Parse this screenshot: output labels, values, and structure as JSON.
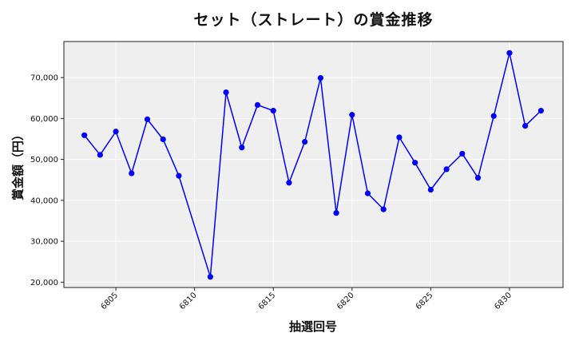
{
  "chart_data": {
    "type": "line",
    "title": "セット（ストレート）の賞金推移",
    "xlabel": "抽選回号",
    "ylabel": "賞金額（円）",
    "x": [
      6803,
      6804,
      6805,
      6806,
      6807,
      6808,
      6809,
      6811,
      6812,
      6813,
      6814,
      6815,
      6816,
      6817,
      6818,
      6819,
      6820,
      6821,
      6822,
      6823,
      6824,
      6825,
      6826,
      6827,
      6828,
      6829,
      6830,
      6831,
      6832
    ],
    "series": [
      {
        "name": "賞金額",
        "color": "#0000ff",
        "marker": "circle",
        "values": [
          55900,
          51100,
          56800,
          46600,
          59800,
          54900,
          46000,
          21300,
          66400,
          52900,
          63300,
          61900,
          44300,
          54300,
          69900,
          36900,
          60900,
          41700,
          37800,
          55400,
          49200,
          42600,
          47600,
          51400,
          45500,
          60600,
          76000,
          58200,
          61900
        ]
      }
    ],
    "xticks": [
      6805,
      6810,
      6815,
      6820,
      6825,
      6830
    ],
    "xtick_labels": [
      "6805",
      "6810",
      "6815",
      "6820",
      "6825",
      "6830"
    ],
    "yticks": [
      20000,
      30000,
      40000,
      50000,
      60000,
      70000
    ],
    "ytick_labels": [
      "20,000",
      "30,000",
      "40,000",
      "50,000",
      "60,000",
      "70,000"
    ],
    "xlim": [
      6801.7,
      6833.4
    ],
    "ylim": [
      18700,
      78800
    ],
    "grid": true,
    "background": "#efefef",
    "legend": null
  }
}
